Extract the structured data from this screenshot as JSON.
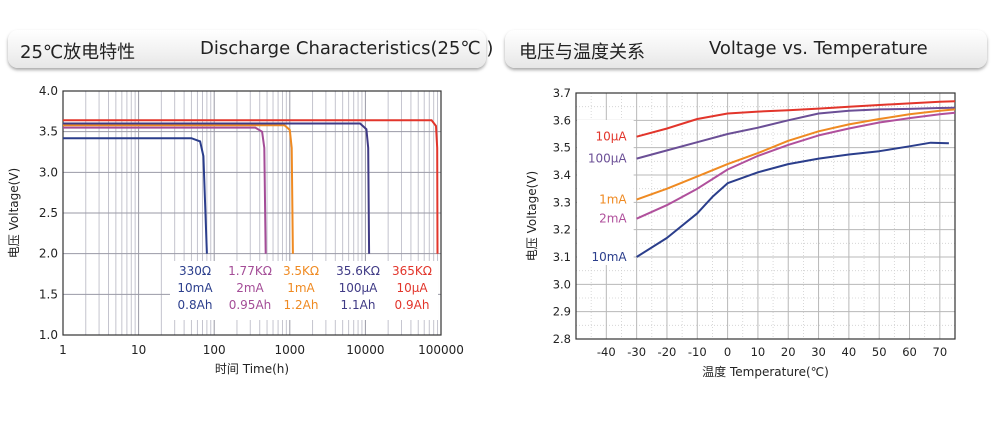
{
  "headers": {
    "left_zh": "25℃放电特性",
    "left_en": "Discharge Characteristics(25℃ )",
    "right_zh": "电压与温度关系",
    "right_en": "Voltage vs. Temperature"
  },
  "chart_data": [
    {
      "type": "line",
      "title": "25℃放电特性 Discharge Characteristics(25℃ )",
      "xlabel": "时间 Time(h)",
      "ylabel": "电压 Voltage(V)",
      "xscale": "log",
      "xlim": [
        1,
        100000
      ],
      "ylim": [
        1.0,
        4.0
      ],
      "x_ticks": [
        1,
        10,
        100,
        1000,
        10000,
        100000
      ],
      "x_tick_labels": [
        "1",
        "10",
        "100",
        "1000",
        "10000",
        "100000"
      ],
      "y_ticks": [
        1.0,
        1.5,
        2.0,
        2.5,
        3.0,
        3.5,
        4.0
      ],
      "y_tick_labels": [
        "1.0",
        "1.5",
        "2.0",
        "2.5",
        "3.0",
        "3.5",
        "4.0"
      ],
      "grid": true,
      "series": [
        {
          "name": "330Ω",
          "current": "10mA",
          "capacity": "0.8Ah",
          "color": "#2b3e8c",
          "points": [
            [
              1,
              3.42
            ],
            [
              50,
              3.42
            ],
            [
              65,
              3.38
            ],
            [
              72,
              3.2
            ],
            [
              80,
              2.0
            ]
          ]
        },
        {
          "name": "1.77KΩ",
          "current": "2mA",
          "capacity": "0.95Ah",
          "color": "#a44d97",
          "points": [
            [
              1,
              3.55
            ],
            [
              350,
              3.55
            ],
            [
              430,
              3.5
            ],
            [
              460,
              3.3
            ],
            [
              480,
              2.0
            ]
          ]
        },
        {
          "name": "3.5KΩ",
          "current": "1mA",
          "capacity": "1.2Ah",
          "color": "#ef8a22",
          "points": [
            [
              1,
              3.58
            ],
            [
              850,
              3.58
            ],
            [
              1000,
              3.52
            ],
            [
              1060,
              3.3
            ],
            [
              1100,
              2.0
            ]
          ]
        },
        {
          "name": "35.6KΩ",
          "current": "100μA",
          "capacity": "1.1Ah",
          "color": "#3f3a85",
          "points": [
            [
              1,
              3.6
            ],
            [
              8500,
              3.6
            ],
            [
              10300,
              3.53
            ],
            [
              10900,
              3.3
            ],
            [
              11200,
              2.0
            ]
          ]
        },
        {
          "name": "365KΩ",
          "current": "10μA",
          "capacity": "0.9Ah",
          "color": "#e2352b",
          "points": [
            [
              1,
              3.64
            ],
            [
              75000,
              3.64
            ],
            [
              86000,
              3.57
            ],
            [
              89000,
              3.3
            ],
            [
              90000,
              2.0
            ]
          ]
        }
      ]
    },
    {
      "type": "line",
      "title": "电压与温度关系 Voltage vs. Temperature",
      "xlabel": "温度 Temperature(℃)",
      "ylabel": "电压 Voltage(V)",
      "xlim": [
        -50,
        75
      ],
      "ylim": [
        2.8,
        3.7
      ],
      "x_ticks": [
        -40,
        -30,
        -20,
        -10,
        0,
        10,
        20,
        30,
        40,
        50,
        60,
        70
      ],
      "x_tick_labels": [
        "-40",
        "-30",
        "-20",
        "-10",
        "0",
        "10",
        "20",
        "30",
        "40",
        "50",
        "60",
        "70"
      ],
      "y_ticks": [
        2.8,
        2.9,
        3.0,
        3.1,
        3.2,
        3.3,
        3.4,
        3.5,
        3.6,
        3.7
      ],
      "y_tick_labels": [
        "2.8",
        "2.9",
        "3.0",
        "3.1",
        "3.2",
        "3.3",
        "3.4",
        "3.5",
        "3.6",
        "3.7"
      ],
      "grid": true,
      "series": [
        {
          "name": "10μA",
          "color": "#e2352b",
          "points": [
            [
              -30,
              3.54
            ],
            [
              -20,
              3.57
            ],
            [
              -10,
              3.605
            ],
            [
              0,
              3.625
            ],
            [
              10,
              3.632
            ],
            [
              20,
              3.637
            ],
            [
              30,
              3.643
            ],
            [
              40,
              3.65
            ],
            [
              50,
              3.656
            ],
            [
              60,
              3.662
            ],
            [
              70,
              3.668
            ],
            [
              75,
              3.67
            ]
          ]
        },
        {
          "name": "100μA",
          "color": "#6b4f96",
          "points": [
            [
              -30,
              3.46
            ],
            [
              -20,
              3.49
            ],
            [
              -10,
              3.52
            ],
            [
              0,
              3.55
            ],
            [
              10,
              3.573
            ],
            [
              20,
              3.6
            ],
            [
              30,
              3.625
            ],
            [
              40,
              3.635
            ],
            [
              50,
              3.64
            ],
            [
              60,
              3.642
            ],
            [
              70,
              3.645
            ],
            [
              75,
              3.646
            ]
          ]
        },
        {
          "name": "1mA",
          "color": "#ef8a22",
          "points": [
            [
              -30,
              3.31
            ],
            [
              -20,
              3.35
            ],
            [
              -10,
              3.395
            ],
            [
              0,
              3.44
            ],
            [
              10,
              3.48
            ],
            [
              20,
              3.525
            ],
            [
              30,
              3.56
            ],
            [
              40,
              3.585
            ],
            [
              50,
              3.605
            ],
            [
              60,
              3.622
            ],
            [
              70,
              3.635
            ],
            [
              75,
              3.64
            ]
          ]
        },
        {
          "name": "2mA",
          "color": "#b0509c",
          "points": [
            [
              -30,
              3.24
            ],
            [
              -20,
              3.29
            ],
            [
              -10,
              3.35
            ],
            [
              0,
              3.42
            ],
            [
              10,
              3.47
            ],
            [
              20,
              3.51
            ],
            [
              30,
              3.545
            ],
            [
              40,
              3.57
            ],
            [
              50,
              3.592
            ],
            [
              60,
              3.608
            ],
            [
              70,
              3.622
            ],
            [
              75,
              3.628
            ]
          ]
        },
        {
          "name": "10mA",
          "color": "#2b3e8c",
          "points": [
            [
              -30,
              3.1
            ],
            [
              -20,
              3.17
            ],
            [
              -10,
              3.26
            ],
            [
              -5,
              3.32
            ],
            [
              0,
              3.37
            ],
            [
              10,
              3.41
            ],
            [
              20,
              3.44
            ],
            [
              30,
              3.46
            ],
            [
              40,
              3.475
            ],
            [
              50,
              3.487
            ],
            [
              60,
              3.505
            ],
            [
              67,
              3.518
            ],
            [
              73,
              3.516
            ]
          ]
        }
      ]
    }
  ]
}
